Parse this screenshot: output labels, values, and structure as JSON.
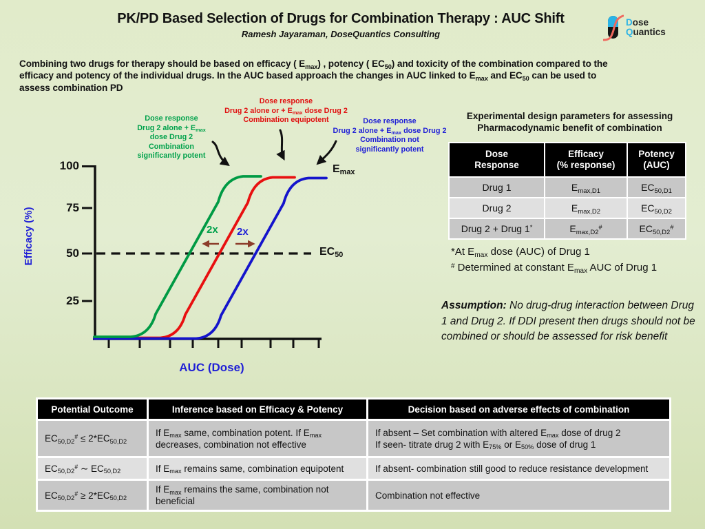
{
  "header": {
    "title": "PK/PD Based Selection of Drugs for Combination Therapy : AUC Shift",
    "subtitle": "Ramesh Jayaraman, DoseQuantics Consulting",
    "logo": {
      "word1_initial": "D",
      "word1_rest": "ose",
      "word2_initial": "Q",
      "word2_rest": "uantics"
    }
  },
  "intro": "Combining two drugs for therapy should be based on efficacy ( E~max~) , potency ( EC~50~) and toxicity of the combination compared to the\nefficacy and potency of the individual drugs. In the AUC based approach the changes in AUC linked to E~max~ and EC~50~ can be used to\nassess combination PD",
  "chart": {
    "y_axis_label": "Efficacy (%)",
    "x_axis_label": "AUC (Dose)",
    "y_ticks": [
      "100",
      "75",
      "50",
      "25"
    ],
    "emax_label": "E~max~",
    "ec50_label": "EC~50~",
    "fold_left": "2x",
    "fold_right": "2x",
    "annotation_green": "Dose response\nDrug 2 alone + E~max~\ndose Drug 2\nCombination\nsignificantly potent",
    "annotation_red": "Dose response\nDrug 2 alone or + E~max~ dose Drug 2\nCombination equipotent",
    "annotation_blue": "Dose response\nDrug 2 alone + E~max~ dose Drug 2\nCombination not\nsignificantly potent"
  },
  "chart_data": {
    "type": "line",
    "title": "Dose response AUC shift",
    "xlabel": "AUC (Dose)",
    "ylabel": "Efficacy (%)",
    "ylim": [
      0,
      100
    ],
    "y_ticks": [
      25,
      50,
      75,
      100
    ],
    "x_axis": "unlabeled dose/AUC scale, 9 tick marks",
    "grid": false,
    "series": [
      {
        "name": "Dose response Drug 2 alone + Emax dose Drug 2 - Combination significantly potent",
        "color": "#009a44",
        "shape": "sigmoid",
        "relative_ec50": 0.5,
        "plateau_pct": 96
      },
      {
        "name": "Dose response Drug 2 alone or + Emax dose Drug 2 - Combination equipotent",
        "color": "#e81010",
        "shape": "sigmoid",
        "relative_ec50": 1,
        "plateau_pct": 96
      },
      {
        "name": "Dose response Drug 2 alone + Emax dose Drug 2 - Combination not significantly potent",
        "color": "#1414cc",
        "shape": "sigmoid",
        "relative_ec50": 2,
        "plateau_pct": 96
      }
    ],
    "annotations": [
      {
        "text": "EC50",
        "type": "dashed horizontal line at 50% efficacy"
      },
      {
        "text": "Emax",
        "type": "label at curve plateau"
      },
      {
        "text": "2x",
        "type": "potency shift arrows between adjacent curves (left green, right blue)"
      }
    ],
    "legend_position": "none"
  },
  "design_table": {
    "title": "Experimental design parameters for assessing\nPharmacodynamic benefit of combination",
    "headers": [
      "Dose\nResponse",
      "Efficacy\n(% response)",
      "Potency\n(AUC)"
    ],
    "rows": [
      [
        "Drug 1",
        "E~max,D1~",
        "EC~50,D1~"
      ],
      [
        "Drug 2",
        "E~max,D2~",
        "EC~50,D2~"
      ],
      [
        "Drug 2 + Drug 1^*^",
        "E~max,D2~^#^",
        "EC~50,D2~^#^"
      ]
    ]
  },
  "footnotes": {
    "line1": "*At E~max~ dose (AUC) of Drug 1",
    "line2": "^#^ Determined at constant E~max~ AUC of Drug 1"
  },
  "assumption": {
    "label": "Assumption:",
    "text": " No drug-drug interaction between Drug 1 and Drug 2. If DDI present then drugs should not be combined or should be assessed for risk benefit"
  },
  "outcome_table": {
    "headers": [
      "Potential Outcome",
      "Inference based on Efficacy & Potency",
      "Decision based on adverse effects of combination"
    ],
    "rows": [
      [
        "EC~50,D2~^#^ ≤ 2*EC~50,D2~",
        "If E~max~ same, combination potent. If E~max~ decreases, combination not effective",
        "If absent – Set combination with altered E~max~ dose of drug 2\nIf seen- titrate drug 2 with E~75%~ or E~50%~ dose of drug 1"
      ],
      [
        "EC~50,D2~^#^ ∼ EC~50,D2~",
        "If E~max~ remains same, combination equipotent",
        "If absent- combination still good to reduce resistance development"
      ],
      [
        "EC~50,D2~^#^ ≥ 2*EC~50,D2~",
        "If E~max~ remains the same, combination not beneficial",
        "Combination not effective"
      ]
    ]
  },
  "colors": {
    "green_curve": "#009a44",
    "red_curve": "#e81010",
    "blue_curve": "#1414cc",
    "green_text": "#00a14b",
    "red_text": "#e01010",
    "blue_text": "#1f1fd6",
    "arrow_brown": "#8c3d2b",
    "row_dark": "#c7c7c7",
    "row_light": "#e0e0e0",
    "logo_blue": "#2bb3e6",
    "logo_salmon": "#f0685e"
  }
}
